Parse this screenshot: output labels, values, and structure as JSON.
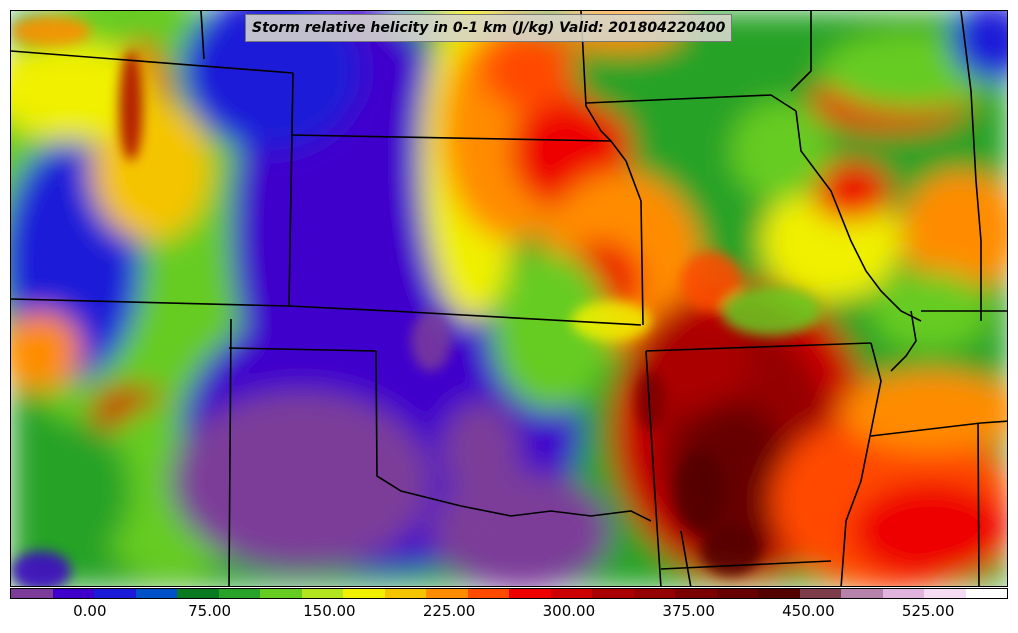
{
  "title": "Storm relative helicity in 0-1 km (J/kg) Valid: 201804220400",
  "colorbar": {
    "min": -50,
    "max": 575,
    "colors": [
      "#7b3d99",
      "#3f00cc",
      "#1a1ad8",
      "#0050c8",
      "#0a7a22",
      "#28a228",
      "#66cc22",
      "#b2e51e",
      "#f0f000",
      "#f5c400",
      "#ff8c00",
      "#ff4a00",
      "#ee0000",
      "#cc0000",
      "#aa0000",
      "#940000",
      "#7a0000",
      "#660000",
      "#520000",
      "#7d3c4a",
      "#b582ac",
      "#e0b4dc",
      "#f4dcf2",
      "#ffffff"
    ],
    "tick_labels": [
      "0.00",
      "75.00",
      "150.00",
      "225.00",
      "300.00",
      "375.00",
      "450.00",
      "525.00"
    ],
    "tick_values": [
      0,
      75,
      150,
      225,
      300,
      375,
      450,
      525
    ]
  }
}
